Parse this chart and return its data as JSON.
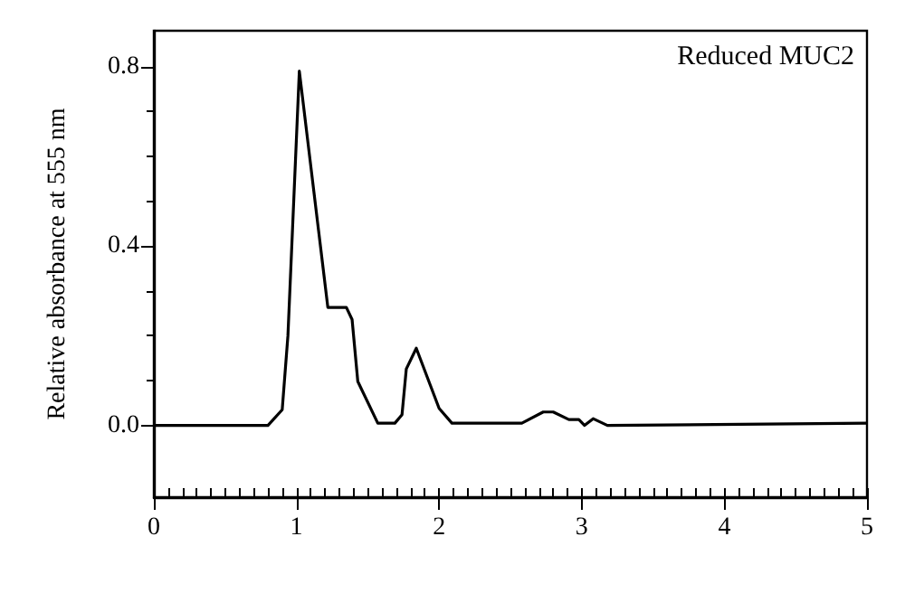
{
  "chart_data": {
    "type": "line",
    "ylabel": "Relative absorbance at 555 nm",
    "annotations": [
      "Reduced MUC2"
    ],
    "x": [
      0,
      0.8,
      0.9,
      0.94,
      1.02,
      1.22,
      1.35,
      1.39,
      1.43,
      1.57,
      1.69,
      1.74,
      1.77,
      1.84,
      2.0,
      2.09,
      2.58,
      2.73,
      2.8,
      2.91,
      2.98,
      3.02,
      3.08,
      3.18,
      5
    ],
    "series": [
      {
        "color": "#000000",
        "values": [
          0,
          0,
          0.035,
          0.2,
          0.79,
          0.263,
          0.263,
          0.236,
          0.098,
          0.005,
          0.005,
          0.024,
          0.126,
          0.172,
          0.038,
          0.005,
          0.005,
          0.03,
          0.03,
          0.013,
          0.013,
          0,
          0.015,
          0,
          0.005
        ]
      }
    ],
    "xlim": [
      0,
      5
    ],
    "xticks": [
      0,
      {
        "value": 0.1,
        "label": null
      },
      {
        "value": 0.2,
        "label": null
      },
      {
        "value": 0.3,
        "label": null
      },
      {
        "value": 0.4,
        "label": null
      },
      {
        "value": 0.5,
        "label": null
      },
      {
        "value": 0.6,
        "label": null
      },
      {
        "value": 0.7,
        "label": null
      },
      {
        "value": 0.8,
        "label": null
      },
      {
        "value": 0.9,
        "label": null
      },
      1,
      {
        "value": 1.1,
        "label": null
      },
      {
        "value": 1.2,
        "label": null
      },
      {
        "value": 1.3,
        "label": null
      },
      {
        "value": 1.4,
        "label": null
      },
      {
        "value": 1.5,
        "label": null
      },
      {
        "value": 1.6,
        "label": null
      },
      {
        "value": 1.7,
        "label": null
      },
      {
        "value": 1.8,
        "label": null
      },
      {
        "value": 1.9,
        "label": null
      },
      2,
      {
        "value": 2.1,
        "label": null
      },
      {
        "value": 2.2,
        "label": null
      },
      {
        "value": 2.3,
        "label": null
      },
      {
        "value": 2.4,
        "label": null
      },
      {
        "value": 2.5,
        "label": null
      },
      {
        "value": 2.6,
        "label": null
      },
      {
        "value": 2.7,
        "label": null
      },
      {
        "value": 2.8,
        "label": null
      },
      {
        "value": 2.9,
        "label": null
      },
      3,
      {
        "value": 3.1,
        "label": null
      },
      {
        "value": 3.2,
        "label": null
      },
      {
        "value": 3.3,
        "label": null
      },
      {
        "value": 3.4,
        "label": null
      },
      {
        "value": 3.5,
        "label": null
      },
      {
        "value": 3.6,
        "label": null
      },
      {
        "value": 3.7,
        "label": null
      },
      {
        "value": 3.8,
        "label": null
      },
      {
        "value": 3.9,
        "label": null
      },
      4,
      {
        "value": 4.1,
        "label": null
      },
      {
        "value": 4.2,
        "label": null
      },
      {
        "value": 4.3,
        "label": null
      },
      {
        "value": 4.4,
        "label": null
      },
      {
        "value": 4.5,
        "label": null
      },
      {
        "value": 4.6,
        "label": null
      },
      {
        "value": 4.7,
        "label": null
      },
      {
        "value": 4.8,
        "label": null
      },
      {
        "value": 4.9,
        "label": null
      },
      5
    ],
    "ylim": [
      -0.16,
      0.88
    ],
    "yticks": [
      {
        "value": 0,
        "label": "0.0"
      },
      {
        "value": 0.1,
        "label": null
      },
      {
        "value": 0.2,
        "label": null
      },
      {
        "value": 0.3,
        "label": null
      },
      {
        "value": 0.4,
        "label": "0.4"
      },
      {
        "value": 0.5,
        "label": null
      },
      {
        "value": 0.6,
        "label": null
      },
      {
        "value": 0.7,
        "label": null
      },
      {
        "value": 0.8,
        "label": "0.8"
      }
    ],
    "marker": "none",
    "line_style": "solid"
  }
}
